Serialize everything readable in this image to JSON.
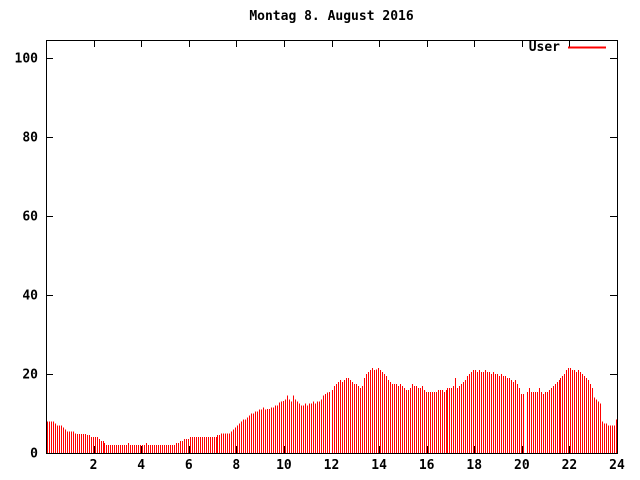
{
  "title": "Montag 8. August 2016",
  "legend": {
    "label": "User",
    "color": "#ff0000",
    "position": "top-right"
  },
  "colors": {
    "bar": "#ff0000",
    "axis": "#000000",
    "background": "#ffffff",
    "text": "#000000"
  },
  "axes": {
    "y_ticks": [
      0,
      20,
      40,
      60,
      80,
      100
    ],
    "x_ticks": [
      2,
      4,
      6,
      8,
      10,
      12,
      14,
      16,
      18,
      20,
      22,
      24
    ],
    "x_range": [
      0,
      24
    ],
    "y_range": [
      0,
      104.5
    ]
  },
  "chart_data": {
    "type": "bar",
    "title": "Montag 8. August 2016",
    "xlabel": "",
    "ylabel": "",
    "x_unit": "hour_of_day",
    "x_start_hour": 0,
    "interval_minutes": 5,
    "xlim": [
      0,
      24
    ],
    "ylim": [
      0,
      104.5
    ],
    "grid": false,
    "legend_position": "top-right",
    "series": [
      {
        "name": "User",
        "color": "#ff0000",
        "values": [
          8,
          8,
          8,
          8,
          7.5,
          7,
          7,
          7,
          6.5,
          6,
          5.5,
          5.5,
          5.5,
          5.5,
          5,
          4.8,
          4.8,
          4.8,
          4.8,
          4.8,
          4.5,
          4.5,
          4,
          4,
          4,
          4,
          3.5,
          3,
          3,
          2.5,
          2,
          2,
          2,
          2,
          2,
          2,
          2,
          2,
          2,
          2,
          2,
          2.5,
          2,
          2,
          2,
          2,
          2,
          2,
          2,
          2,
          2.5,
          2,
          2,
          2,
          2,
          2,
          2,
          2,
          2,
          2,
          2,
          2,
          2,
          2,
          2,
          2.5,
          2.5,
          3,
          3,
          3.5,
          3.5,
          3.5,
          4,
          4,
          4,
          4,
          4,
          4,
          4,
          4,
          4,
          4,
          4,
          4,
          4,
          4,
          4.5,
          4.5,
          5,
          5,
          5,
          5,
          5,
          5.5,
          6,
          6.5,
          7,
          7.5,
          8,
          8.5,
          8.5,
          9,
          9.5,
          10,
          10,
          10.5,
          10.5,
          11,
          11,
          11.5,
          11,
          11.2,
          11.2,
          11.5,
          11.5,
          12,
          12,
          12.8,
          13,
          13.2,
          13.5,
          14.5,
          13.5,
          13,
          14.5,
          13.5,
          13,
          12.5,
          12,
          12,
          12.5,
          12,
          12.5,
          12.5,
          13,
          12.5,
          13,
          13,
          13.5,
          14.5,
          15,
          15.3,
          15.5,
          0,
          16,
          17,
          17.5,
          18,
          18.5,
          18,
          18.5,
          19,
          19,
          18.5,
          18,
          17.5,
          17.5,
          17,
          16.5,
          17,
          19,
          20,
          20.5,
          21,
          21.5,
          21,
          21.2,
          21.5,
          21,
          20.5,
          20,
          19.5,
          18.5,
          18,
          17.5,
          17.5,
          17.5,
          17,
          17.5,
          17,
          16.5,
          16,
          16,
          16.5,
          17.5,
          17,
          17,
          16.5,
          16.5,
          17,
          16,
          15.5,
          15.5,
          15.5,
          15.5,
          15.5,
          15.5,
          16,
          16,
          16,
          15.5,
          16,
          16.5,
          16.5,
          16.5,
          17,
          19,
          16.5,
          17,
          17.5,
          18,
          18.5,
          19.5,
          20,
          20.5,
          21,
          21,
          20.5,
          21,
          20.5,
          20.5,
          21,
          20.5,
          20.5,
          20,
          20.5,
          20,
          20,
          19.5,
          20,
          19.5,
          19.5,
          19,
          19,
          18.5,
          18,
          18.5,
          17.5,
          16.5,
          15,
          15,
          0,
          15.5,
          16.5,
          15.5,
          15.5,
          15.5,
          15.5,
          16.5,
          15.5,
          15,
          15.5,
          15.5,
          16,
          16.5,
          17,
          17.5,
          18,
          18.5,
          19,
          19.5,
          20,
          21,
          21.5,
          21.5,
          21,
          21,
          20.5,
          21,
          20.5,
          20,
          19.5,
          19,
          18.5,
          17.5,
          16.5,
          14,
          13.5,
          13,
          12.5,
          8,
          7.5,
          7.5,
          7,
          7,
          7,
          7,
          8.5
        ]
      }
    ]
  }
}
